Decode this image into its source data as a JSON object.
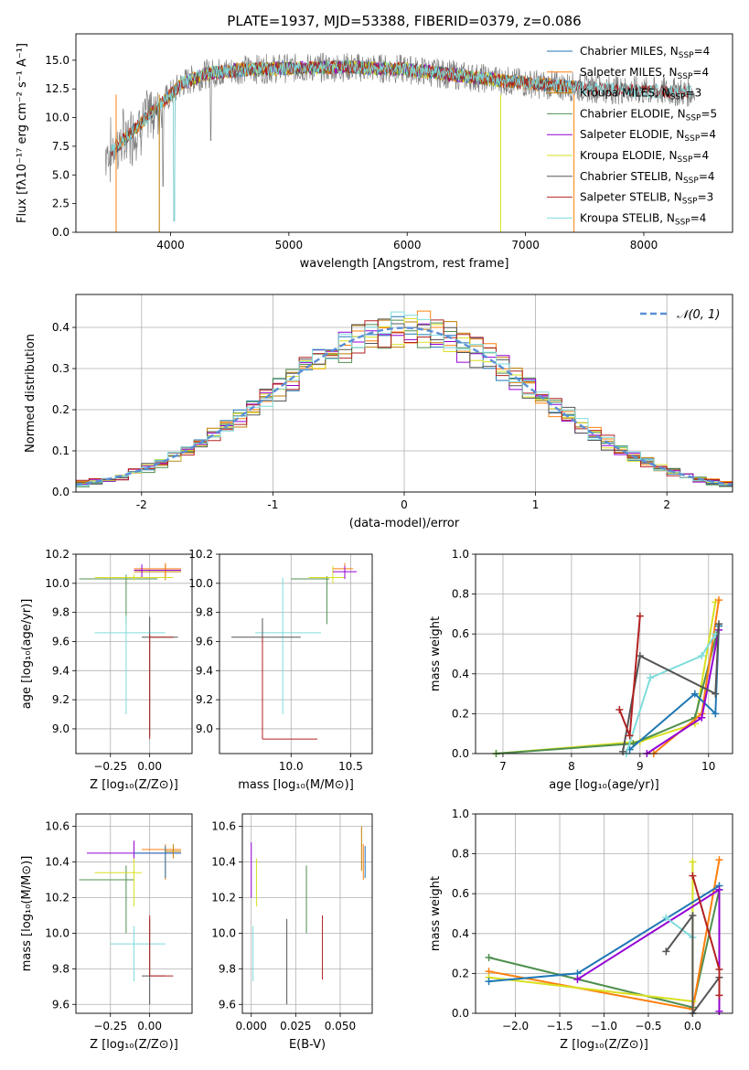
{
  "title": "PLATE=1937, MJD=53388, FIBERID=0379, z=0.086",
  "colors": {
    "Chabrier MILES": "#1f77b4",
    "Salpeter MILES": "#ff7f0e",
    "Kroupa MILES": "#bf7f00",
    "Chabrier ELODIE": "#4f8f4f",
    "Salpeter ELODIE": "#9400d3",
    "Kroupa ELODIE": "#d9e021",
    "Chabrier STELIB": "#555555",
    "Salpeter STELIB": "#b22222",
    "Kroupa STELIB": "#7fdcdc",
    "gaussian": "#5b8fd6",
    "grid": "#b0b0b0"
  },
  "chart_data": [
    {
      "type": "line",
      "title": "PLATE=1937, MJD=53388, FIBERID=0379, z=0.086",
      "xlabel": "wavelength [Angstrom, rest frame]",
      "ylabel": "Flux [fλ10⁻¹⁷ erg cm⁻² s⁻¹ A⁻¹]",
      "xlim": [
        3200,
        8750
      ],
      "ylim": [
        0,
        17.3
      ],
      "xticks": [
        4000,
        5000,
        6000,
        7000,
        8000
      ],
      "yticks": [
        0.0,
        2.5,
        5.0,
        7.5,
        10.0,
        12.5,
        15.0
      ],
      "grid": false,
      "legend_position": "right",
      "legend": [
        {
          "label": "Chabrier MILES, N",
          "sub": "SSP",
          "tail": "=4"
        },
        {
          "label": "Salpeter MILES, N",
          "sub": "SSP",
          "tail": "=4"
        },
        {
          "label": "Kroupa MILES, N",
          "sub": "SSP",
          "tail": "=3"
        },
        {
          "label": "Chabrier ELODIE, N",
          "sub": "SSP",
          "tail": "=5"
        },
        {
          "label": "Salpeter ELODIE, N",
          "sub": "SSP",
          "tail": "=4"
        },
        {
          "label": "Kroupa ELODIE, N",
          "sub": "SSP",
          "tail": "=4"
        },
        {
          "label": "Chabrier STELIB, N",
          "sub": "SSP",
          "tail": "=4"
        },
        {
          "label": "Salpeter STELIB, N",
          "sub": "SSP",
          "tail": "=3"
        },
        {
          "label": "Kroupa STELIB, N",
          "sub": "SSP",
          "tail": "=4"
        }
      ],
      "continuum_model": [
        [
          3500,
          7.0
        ],
        [
          3650,
          8.5
        ],
        [
          3800,
          10.0
        ],
        [
          3950,
          11.5
        ],
        [
          4100,
          13.0
        ],
        [
          4300,
          13.8
        ],
        [
          4600,
          14.2
        ],
        [
          5000,
          14.3
        ],
        [
          5500,
          14.4
        ],
        [
          6000,
          14.2
        ],
        [
          6500,
          13.6
        ],
        [
          7000,
          13.0
        ],
        [
          7500,
          12.6
        ],
        [
          8000,
          12.3
        ],
        [
          8400,
          12.2
        ]
      ]
    },
    {
      "type": "histogram",
      "xlabel": "(data-model)/error",
      "ylabel": "Normed distribution",
      "xlim": [
        -2.5,
        2.5
      ],
      "ylim": [
        0,
        0.48
      ],
      "xticks": [
        -2,
        -1,
        0,
        1,
        2
      ],
      "yticks": [
        0.0,
        0.1,
        0.2,
        0.3,
        0.4
      ],
      "grid": true,
      "legend_label": "𝒩(0, 1)",
      "gaussian": {
        "mean": 0,
        "sigma": 1
      },
      "bin_width": 0.1
    },
    {
      "type": "scatter",
      "xlabel": "Z [log₁₀(Z/Z⊙)]",
      "ylabel": "age  [log₁₀(age/yr)]",
      "xlim": [
        -0.47,
        0.27
      ],
      "ylim": [
        8.83,
        10.2
      ],
      "xticks": [
        -0.25,
        0.0
      ],
      "xticklabels": [
        "−0.25",
        "0.00"
      ],
      "yticks": [
        9.0,
        9.2,
        9.4,
        9.6,
        9.8,
        10.0,
        10.2
      ],
      "grid": true,
      "points": [
        {
          "c": "Chabrier ELODIE",
          "x": -0.15,
          "y": 10.03,
          "xl": -0.45,
          "xh": 0.05,
          "yl": 9.72,
          "yh": 10.06
        },
        {
          "c": "Kroupa MILES",
          "x": 0.1,
          "y": 10.08,
          "xl": -0.1,
          "xh": 0.2,
          "yl": 10.02,
          "yh": 10.13
        },
        {
          "c": "Salpeter MILES",
          "x": 0.1,
          "y": 10.1,
          "xl": -0.1,
          "xh": 0.2,
          "yl": 10.05,
          "yh": 10.14
        },
        {
          "c": "Salpeter ELODIE",
          "x": -0.05,
          "y": 10.09,
          "xl": -0.1,
          "xh": 0.2,
          "yl": 10.04,
          "yh": 10.13
        },
        {
          "c": "Kroupa ELODIE",
          "x": -0.1,
          "y": 10.04,
          "xl": -0.35,
          "xh": 0.15,
          "yl": 10.02,
          "yh": 10.06
        },
        {
          "c": "Kroupa STELIB",
          "x": -0.15,
          "y": 9.66,
          "xl": -0.35,
          "xh": 0.1,
          "yl": 9.1,
          "yh": 9.78
        },
        {
          "c": "Chabrier STELIB",
          "x": 0.0,
          "y": 9.63,
          "xl": -0.05,
          "xh": 0.18,
          "yl": 8.95,
          "yh": 9.77
        },
        {
          "c": "Salpeter STELIB",
          "x": 0.0,
          "y": 9.63,
          "xl": 0.0,
          "xh": 0.15,
          "yl": 8.93,
          "yh": 9.65
        }
      ]
    },
    {
      "type": "scatter",
      "xlabel": "mass [log₁₀(M/M⊙)]",
      "ylabel": "",
      "xlim": [
        9.4,
        10.68
      ],
      "ylim": [
        8.83,
        10.2
      ],
      "xticks": [
        10.0,
        10.5
      ],
      "xticklabels": [
        "10.0",
        "10.5"
      ],
      "yticks": [
        9.0,
        9.2,
        9.4,
        9.6,
        9.8,
        10.0,
        10.2
      ],
      "grid": true,
      "points": [
        {
          "c": "Chabrier ELODIE",
          "x": 10.3,
          "y": 10.03,
          "xl": 10.0,
          "xh": 10.32,
          "yl": 9.72,
          "yh": 10.05
        },
        {
          "c": "Kroupa ELODIE",
          "x": 10.35,
          "y": 10.04,
          "xl": 10.15,
          "xh": 10.45,
          "yl": 10.0,
          "yh": 10.12
        },
        {
          "c": "Salpeter MILES",
          "x": 10.45,
          "y": 10.1,
          "xl": 10.35,
          "xh": 10.52,
          "yl": 10.04,
          "yh": 10.14
        },
        {
          "c": "Salpeter ELODIE",
          "x": 10.45,
          "y": 10.08,
          "xl": 10.35,
          "xh": 10.55,
          "yl": 10.03,
          "yh": 10.12
        },
        {
          "c": "Kroupa STELIB",
          "x": 9.93,
          "y": 9.66,
          "xl": 9.7,
          "xh": 10.25,
          "yl": 9.1,
          "yh": 10.04
        },
        {
          "c": "Chabrier STELIB",
          "x": 9.76,
          "y": 9.63,
          "xl": 9.5,
          "xh": 10.08,
          "yl": 9.6,
          "yh": 9.76
        },
        {
          "c": "Salpeter STELIB",
          "x": 9.76,
          "y": 8.93,
          "xl": 9.76,
          "xh": 10.22,
          "yl": 8.93,
          "yh": 9.63
        }
      ]
    },
    {
      "type": "line",
      "xlabel": "age  [log₁₀(age/yr)]",
      "ylabel": "mass weight",
      "xlim": [
        6.6,
        10.35
      ],
      "ylim": [
        0,
        1.0
      ],
      "xticks": [
        7,
        8,
        9,
        10
      ],
      "yticks": [
        0.0,
        0.2,
        0.4,
        0.6,
        0.8,
        1.0
      ],
      "grid": true,
      "series": [
        {
          "c": "Kroupa ELODIE",
          "points": [
            [
              6.9,
              0.0
            ],
            [
              9.0,
              0.06
            ],
            [
              9.8,
              0.15
            ],
            [
              10.1,
              0.76
            ]
          ]
        },
        {
          "c": "Chabrier ELODIE",
          "points": [
            [
              6.9,
              0.0
            ],
            [
              8.9,
              0.05
            ],
            [
              9.8,
              0.18
            ],
            [
              10.15,
              0.64
            ]
          ]
        },
        {
          "c": "Salpeter MILES",
          "points": [
            [
              9.2,
              0.0
            ],
            [
              9.9,
              0.2
            ],
            [
              10.15,
              0.77
            ]
          ]
        },
        {
          "c": "Chabrier MILES",
          "points": [
            [
              8.85,
              0.02
            ],
            [
              9.8,
              0.3
            ],
            [
              10.1,
              0.2
            ],
            [
              10.15,
              0.64
            ]
          ]
        },
        {
          "c": "Salpeter ELODIE",
          "points": [
            [
              9.1,
              0.0
            ],
            [
              9.9,
              0.18
            ],
            [
              10.15,
              0.62
            ]
          ]
        },
        {
          "c": "Kroupa STELIB",
          "points": [
            [
              8.8,
              0.0
            ],
            [
              9.15,
              0.38
            ],
            [
              9.9,
              0.49
            ],
            [
              10.1,
              0.6
            ]
          ]
        },
        {
          "c": "Chabrier STELIB",
          "points": [
            [
              8.75,
              0.01
            ],
            [
              9.0,
              0.49
            ],
            [
              10.1,
              0.3
            ],
            [
              10.15,
              0.65
            ]
          ]
        },
        {
          "c": "Salpeter STELIB",
          "points": [
            [
              8.7,
              0.22
            ],
            [
              8.85,
              0.09
            ],
            [
              9.0,
              0.69
            ]
          ]
        }
      ]
    },
    {
      "type": "scatter",
      "xlabel": "Z [log₁₀(Z/Z⊙)]",
      "ylabel": "mass [log₁₀(M/M⊙)]",
      "xlim": [
        -0.47,
        0.27
      ],
      "ylim": [
        9.55,
        10.67
      ],
      "xticks": [
        -0.25,
        0.0
      ],
      "xticklabels": [
        "−0.25",
        "0.00"
      ],
      "yticks": [
        9.6,
        9.8,
        10.0,
        10.2,
        10.4,
        10.6
      ],
      "grid": true,
      "points": [
        {
          "c": "Chabrier ELODIE",
          "x": -0.15,
          "y": 10.3,
          "xl": -0.45,
          "xh": -0.1,
          "yl": 10.0,
          "yh": 10.38
        },
        {
          "c": "Kroupa ELODIE",
          "x": -0.1,
          "y": 10.34,
          "xl": -0.35,
          "xh": -0.05,
          "yl": 10.15,
          "yh": 10.42
        },
        {
          "c": "Salpeter ELODIE",
          "x": -0.1,
          "y": 10.45,
          "xl": -0.4,
          "xh": 0.2,
          "yl": 10.42,
          "yh": 10.52
        },
        {
          "c": "Salpeter MILES",
          "x": 0.1,
          "y": 10.47,
          "xl": -0.05,
          "xh": 0.2,
          "yl": 10.3,
          "yh": 10.5
        },
        {
          "c": "Chabrier MILES",
          "x": 0.1,
          "y": 10.45,
          "xl": -0.1,
          "xh": 0.2,
          "yl": 10.31,
          "yh": 10.49
        },
        {
          "c": "Kroupa MILES",
          "x": 0.15,
          "y": 10.46,
          "xl": 0.1,
          "xh": 0.2,
          "yl": 10.42,
          "yh": 10.5
        },
        {
          "c": "Kroupa STELIB",
          "x": -0.1,
          "y": 9.94,
          "xl": -0.25,
          "xh": 0.1,
          "yl": 9.73,
          "yh": 10.04
        },
        {
          "c": "Chabrier STELIB",
          "x": 0.0,
          "y": 9.76,
          "xl": -0.05,
          "xh": 0.1,
          "yl": 9.6,
          "yh": 10.08
        },
        {
          "c": "Salpeter STELIB",
          "x": 0.0,
          "y": 9.76,
          "xl": 0.0,
          "xh": 0.15,
          "yl": 9.76,
          "yh": 10.1
        }
      ]
    },
    {
      "type": "errorbar",
      "xlabel": "E(B-V)",
      "ylabel": "",
      "xlim": [
        -0.005,
        0.068
      ],
      "ylim": [
        9.55,
        10.67
      ],
      "xticks": [
        0.0,
        0.025,
        0.05
      ],
      "xticklabels": [
        "0.000",
        "0.025",
        "0.050"
      ],
      "yticks": [
        9.6,
        9.8,
        10.0,
        10.2,
        10.4,
        10.6
      ],
      "grid": true,
      "points": [
        {
          "c": "Salpeter ELODIE",
          "x": 0.0,
          "yl": 10.2,
          "yh": 10.51
        },
        {
          "c": "Kroupa ELODIE",
          "x": 0.003,
          "yl": 10.15,
          "yh": 10.42
        },
        {
          "c": "Kroupa STELIB",
          "x": 0.001,
          "yl": 9.73,
          "yh": 10.04
        },
        {
          "c": "Chabrier STELIB",
          "x": 0.02,
          "yl": 9.6,
          "yh": 10.08
        },
        {
          "c": "Chabrier ELODIE",
          "x": 0.031,
          "yl": 10.0,
          "yh": 10.38
        },
        {
          "c": "Salpeter STELIB",
          "x": 0.04,
          "yl": 9.74,
          "yh": 10.1
        },
        {
          "c": "Salpeter MILES",
          "x": 0.063,
          "yl": 10.3,
          "yh": 10.5
        },
        {
          "c": "Chabrier MILES",
          "x": 0.064,
          "yl": 10.31,
          "yh": 10.49
        },
        {
          "c": "Kroupa MILES",
          "x": 0.062,
          "yl": 10.35,
          "yh": 10.6
        }
      ]
    },
    {
      "type": "line",
      "xlabel": "Z [log₁₀(Z/Z⊙)]",
      "ylabel": "mass weight",
      "xlim": [
        -2.45,
        0.45
      ],
      "ylim": [
        0,
        1.0
      ],
      "xticks": [
        -2.0,
        -1.5,
        -1.0,
        -0.5,
        0.0
      ],
      "xticklabels": [
        "−2.0",
        "−1.5",
        "−1.0",
        "−0.5",
        "0.0"
      ],
      "yticks": [
        0.0,
        0.2,
        0.4,
        0.6,
        0.8,
        1.0
      ],
      "grid": true,
      "series": [
        {
          "c": "Chabrier ELODIE",
          "points": [
            [
              -2.3,
              0.28
            ],
            [
              0.0,
              0.03
            ],
            [
              0.3,
              0.62
            ]
          ]
        },
        {
          "c": "Salpeter MILES",
          "points": [
            [
              -2.3,
              0.21
            ],
            [
              0.0,
              0.02
            ],
            [
              0.3,
              0.77
            ]
          ]
        },
        {
          "c": "Kroupa ELODIE",
          "points": [
            [
              -2.3,
              0.18
            ],
            [
              0.0,
              0.06
            ],
            [
              0.0,
              0.76
            ]
          ]
        },
        {
          "c": "Chabrier MILES",
          "points": [
            [
              -2.3,
              0.16
            ],
            [
              -1.3,
              0.2
            ],
            [
              0.3,
              0.64
            ]
          ]
        },
        {
          "c": "Salpeter ELODIE",
          "points": [
            [
              -1.3,
              0.17
            ],
            [
              0.3,
              0.62
            ],
            [
              0.3,
              0.01
            ]
          ]
        },
        {
          "c": "Kroupa STELIB",
          "points": [
            [
              -0.3,
              0.48
            ],
            [
              0.0,
              0.38
            ]
          ]
        },
        {
          "c": "Chabrier STELIB",
          "points": [
            [
              -0.3,
              0.31
            ],
            [
              0.0,
              0.49
            ],
            [
              0.0,
              0.0
            ],
            [
              0.3,
              0.18
            ]
          ]
        },
        {
          "c": "Salpeter STELIB",
          "points": [
            [
              0.0,
              0.69
            ],
            [
              0.3,
              0.22
            ],
            [
              0.3,
              0.09
            ]
          ]
        }
      ]
    }
  ]
}
